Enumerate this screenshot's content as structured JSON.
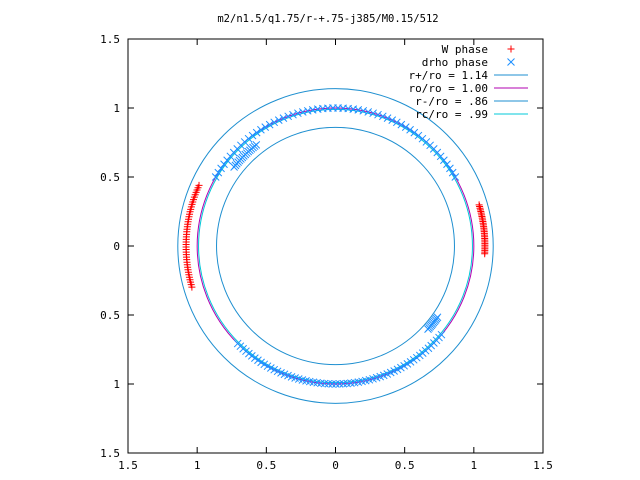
{
  "chart_data": {
    "type": "scatter",
    "title": "m2/n1.5/q1.75/r-+.75-j385/M0.15/512",
    "xlabel": "",
    "ylabel": "",
    "xlim": [
      -1.5,
      1.5
    ],
    "ylim": [
      -1.5,
      1.5
    ],
    "x_ticks": [
      -1.5,
      -1,
      -0.5,
      0,
      0.5,
      1,
      1.5
    ],
    "y_ticks": [
      -1.5,
      -1,
      -0.5,
      0,
      0.5,
      1,
      1.5
    ],
    "x_tick_labels": [
      "1.5",
      "1",
      "0.5",
      "0",
      "0.5",
      "1",
      "1.5"
    ],
    "y_tick_labels": [
      "1.5",
      "1",
      "0.5",
      "0",
      "0.5",
      "1",
      "1.5"
    ],
    "grid": false,
    "legend_position": "top-right",
    "colors": {
      "w_phase": "#ff0000",
      "drho_phase": "#1e90ff",
      "r_plus": "#1e8fd0",
      "ro": "#b000b0",
      "r_minus": "#1e8fd0",
      "rc": "#00c8d8"
    },
    "series": [
      {
        "name": "W phase",
        "kind": "points",
        "marker": "+",
        "arcs": [
          {
            "r": 1.08,
            "theta_from": 156,
            "theta_to": 196,
            "count": 42
          },
          {
            "r": 1.08,
            "theta_from": -3,
            "theta_to": 16,
            "count": 30
          }
        ]
      },
      {
        "name": "drho phase",
        "kind": "points",
        "marker": "x",
        "arcs": [
          {
            "r": 1.0,
            "theta_from": 30,
            "theta_to": 150,
            "count": 58
          },
          {
            "r": 0.93,
            "theta_from": 128,
            "theta_to": 142,
            "count": 16
          },
          {
            "r": 1.0,
            "theta_from": 225,
            "theta_to": 320,
            "count": 62
          },
          {
            "r": 0.9,
            "theta_from": 318,
            "theta_to": 325,
            "count": 10
          }
        ]
      },
      {
        "name": "r+/ro = 1.14",
        "kind": "circle",
        "r": 1.14
      },
      {
        "name": "ro/ro = 1.00",
        "kind": "circle",
        "r": 1.0
      },
      {
        "name": "r-/ro = .86",
        "kind": "circle",
        "r": 0.86
      },
      {
        "name": "rc/ro = .99",
        "kind": "circle",
        "r": 0.99
      }
    ]
  }
}
